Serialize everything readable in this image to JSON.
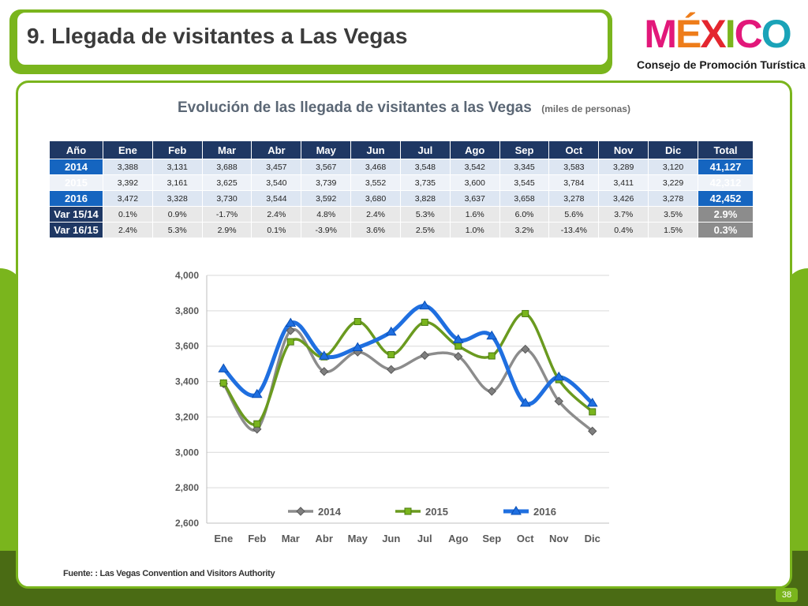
{
  "slide_title": "9. Llegada de visitantes a Las Vegas",
  "logo": {
    "word": "MÉXICO",
    "subtitle": "Consejo de Promoción Turística"
  },
  "table": {
    "headers": [
      "Año",
      "Ene",
      "Feb",
      "Mar",
      "Abr",
      "May",
      "Jun",
      "Jul",
      "Ago",
      "Sep",
      "Oct",
      "Nov",
      "Dic",
      "Total"
    ],
    "rows": [
      [
        "2014",
        "3,388",
        "3,131",
        "3,688",
        "3,457",
        "3,567",
        "3,468",
        "3,548",
        "3,542",
        "3,345",
        "3,583",
        "3,289",
        "3,120",
        "41,127"
      ],
      [
        "2015",
        "3,392",
        "3,161",
        "3,625",
        "3,540",
        "3,739",
        "3,552",
        "3,735",
        "3,600",
        "3,545",
        "3,784",
        "3,411",
        "3,229",
        "42,312"
      ],
      [
        "2016",
        "3,472",
        "3,328",
        "3,730",
        "3,544",
        "3,592",
        "3,680",
        "3,828",
        "3,637",
        "3,658",
        "3,278",
        "3,426",
        "3,278",
        "42,452"
      ],
      [
        "Var 15/14",
        "0.1%",
        "0.9%",
        "-1.7%",
        "2.4%",
        "4.8%",
        "2.4%",
        "5.3%",
        "1.6%",
        "6.0%",
        "5.6%",
        "3.7%",
        "3.5%",
        "2.9%"
      ],
      [
        "Var 16/15",
        "2.4%",
        "5.3%",
        "2.9%",
        "0.1%",
        "-3.9%",
        "3.6%",
        "2.5%",
        "1.0%",
        "3.2%",
        "-13.4%",
        "0.4%",
        "1.5%",
        "0.3%"
      ]
    ]
  },
  "chart_data": {
    "type": "line",
    "title": "Evolución de las llegada de visitantes  a las Vegas",
    "unit": "(miles de personas)",
    "categories": [
      "Ene",
      "Feb",
      "Mar",
      "Abr",
      "May",
      "Jun",
      "Jul",
      "Ago",
      "Sep",
      "Oct",
      "Nov",
      "Dic"
    ],
    "ylim": [
      2600,
      4000
    ],
    "yticks": [
      2600,
      2800,
      3000,
      3200,
      3400,
      3600,
      3800,
      4000
    ],
    "ytick_labels": [
      "2,600",
      "2,800",
      "3,000",
      "3,200",
      "3,400",
      "3,600",
      "3,800",
      "4,000"
    ],
    "grid": true,
    "legend_position": "bottom",
    "series": [
      {
        "name": "2014",
        "color": "#8c8c8c",
        "marker": "diamond",
        "values": [
          3388,
          3131,
          3688,
          3457,
          3567,
          3468,
          3548,
          3542,
          3345,
          3583,
          3289,
          3120
        ]
      },
      {
        "name": "2015",
        "color": "#6a9a1f",
        "marker": "square",
        "values": [
          3392,
          3161,
          3625,
          3540,
          3739,
          3552,
          3735,
          3600,
          3545,
          3784,
          3411,
          3229
        ]
      },
      {
        "name": "2016",
        "color": "#1f6fe0",
        "marker": "triangle",
        "values": [
          3472,
          3328,
          3730,
          3544,
          3592,
          3680,
          3828,
          3637,
          3658,
          3278,
          3426,
          3278
        ]
      }
    ]
  },
  "source": "Fuente: : Las Vegas Convention and Visitors Authority",
  "page_number": "38"
}
